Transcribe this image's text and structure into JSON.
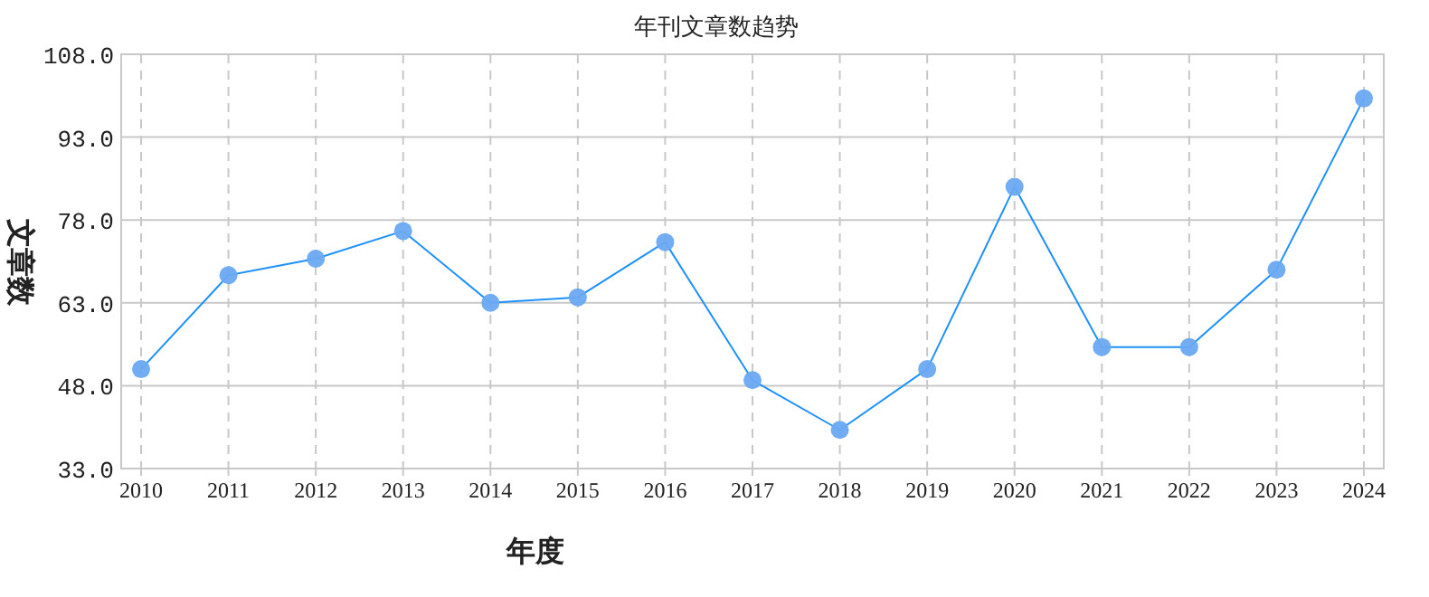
{
  "chart_data": {
    "type": "line",
    "title": "年刊文章数趋势",
    "xlabel": "年度",
    "ylabel": "文章数",
    "categories": [
      "2010",
      "2011",
      "2012",
      "2013",
      "2014",
      "2015",
      "2016",
      "2017",
      "2018",
      "2019",
      "2020",
      "2021",
      "2022",
      "2023",
      "2024"
    ],
    "series": [
      {
        "color": "#1e90ff",
        "values": [
          51,
          68,
          71,
          76,
          63,
          64,
          74,
          49,
          40,
          51,
          84,
          55,
          55,
          69,
          100
        ]
      }
    ],
    "ylim": [
      33,
      108
    ],
    "yticks": [
      {
        "value": 33,
        "label": "33.0"
      },
      {
        "value": 48,
        "label": "48.0"
      },
      {
        "value": 63,
        "label": "63.0"
      },
      {
        "value": 78,
        "label": "78.0"
      },
      {
        "value": 93,
        "label": "93.0"
      },
      {
        "value": 108,
        "label": "108.0"
      }
    ],
    "grid": true,
    "marker": "circle",
    "line_style": "solid"
  }
}
